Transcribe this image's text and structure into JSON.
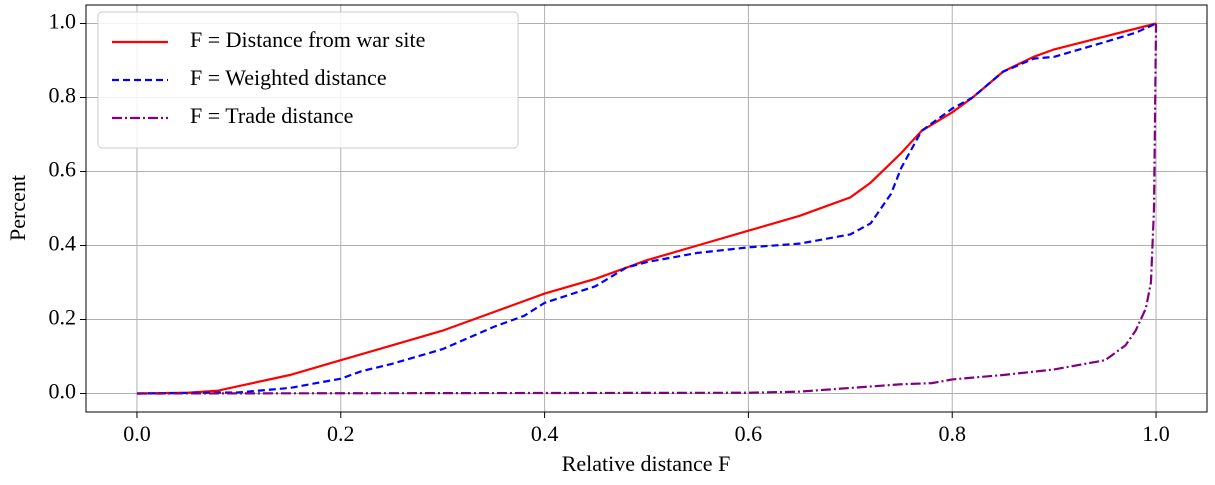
{
  "chart_data": {
    "type": "line",
    "xlabel": "Relative distance F",
    "ylabel": "Percent",
    "xlim": [
      -0.05,
      1.05
    ],
    "ylim": [
      -0.05,
      1.05
    ],
    "xticks": [
      {
        "value": 0,
        "label": "0.0"
      },
      0.2,
      0.4,
      0.6,
      0.8,
      {
        "value": 1,
        "label": "1.0"
      }
    ],
    "yticks": [
      {
        "value": 0,
        "label": "0.0"
      },
      0.2,
      0.4,
      0.6,
      0.8,
      {
        "value": 1,
        "label": "1.0"
      }
    ],
    "grid": true,
    "legend": "upper left",
    "series": [
      {
        "name": "F = Distance from war site",
        "color": "#ff0000",
        "dash": "none",
        "x": [
          0,
          0.05,
          0.08,
          0.1,
          0.15,
          0.2,
          0.25,
          0.3,
          0.35,
          0.4,
          0.45,
          0.5,
          0.55,
          0.6,
          0.65,
          0.7,
          0.72,
          0.75,
          0.77,
          0.8,
          0.82,
          0.85,
          0.88,
          0.9,
          0.95,
          1
        ],
        "values": [
          0,
          0.002,
          0.008,
          0.02,
          0.05,
          0.09,
          0.13,
          0.17,
          0.22,
          0.27,
          0.31,
          0.36,
          0.4,
          0.44,
          0.48,
          0.53,
          0.57,
          0.65,
          0.71,
          0.76,
          0.8,
          0.87,
          0.91,
          0.93,
          0.965,
          1
        ]
      },
      {
        "name": "F = Weighted distance",
        "color": "#0000ff",
        "dash": "7,4",
        "x": [
          0,
          0.1,
          0.15,
          0.2,
          0.22,
          0.25,
          0.3,
          0.35,
          0.38,
          0.4,
          0.45,
          0.48,
          0.5,
          0.55,
          0.6,
          0.65,
          0.7,
          0.72,
          0.74,
          0.75,
          0.77,
          0.8,
          0.82,
          0.85,
          0.88,
          0.9,
          0.95,
          0.98,
          1
        ],
        "values": [
          0,
          0.003,
          0.015,
          0.04,
          0.06,
          0.08,
          0.12,
          0.18,
          0.21,
          0.245,
          0.29,
          0.34,
          0.355,
          0.38,
          0.395,
          0.405,
          0.43,
          0.46,
          0.54,
          0.61,
          0.71,
          0.77,
          0.8,
          0.87,
          0.905,
          0.91,
          0.95,
          0.975,
          1
        ]
      },
      {
        "name": "F = Trade distance",
        "color": "#800080",
        "dash": "10,3,2,3",
        "x": [
          0,
          0.6,
          0.65,
          0.7,
          0.75,
          0.78,
          0.8,
          0.85,
          0.9,
          0.95,
          0.97,
          0.98,
          0.99,
          0.995,
          0.998,
          1
        ],
        "values": [
          0,
          0.002,
          0.005,
          0.015,
          0.025,
          0.028,
          0.038,
          0.05,
          0.065,
          0.09,
          0.13,
          0.17,
          0.23,
          0.3,
          0.5,
          1
        ]
      }
    ]
  }
}
